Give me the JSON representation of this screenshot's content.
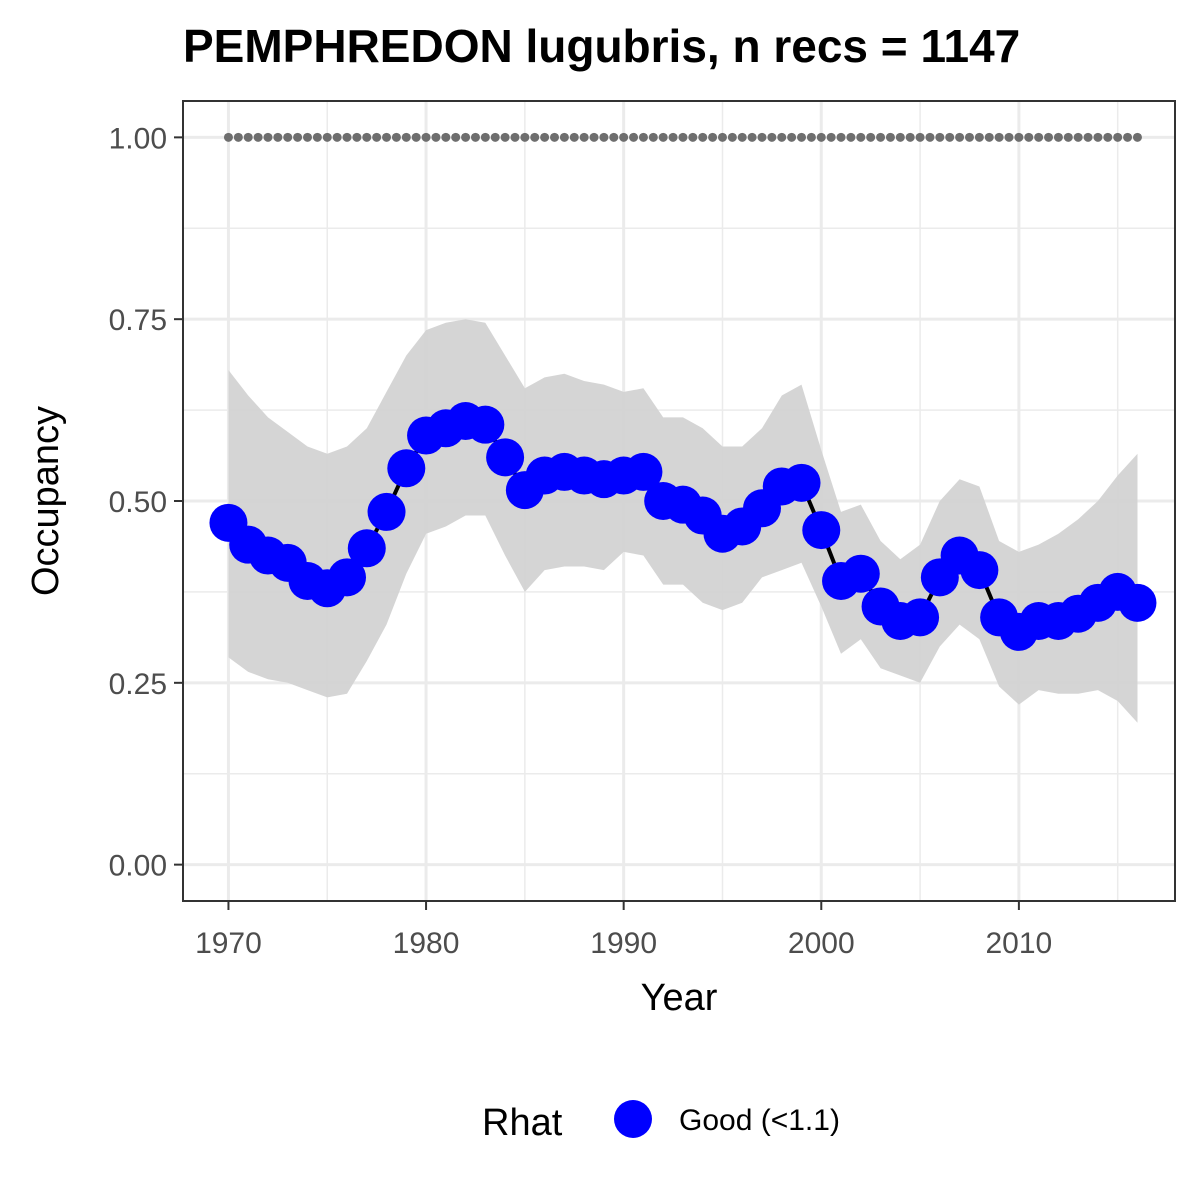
{
  "chart_data": {
    "type": "line",
    "title": "PEMPHREDON lugubris, n recs = 1147",
    "xlabel": "Year",
    "ylabel": "Occupancy",
    "xlim": [
      1967.7,
      2017.9
    ],
    "ylim": [
      -0.05,
      1.05
    ],
    "x_ticks": [
      1970,
      1980,
      1990,
      2000,
      2010
    ],
    "x_tick_labels": [
      "1970",
      "1980",
      "1990",
      "2000",
      "2010"
    ],
    "y_ticks": [
      0,
      0.25,
      0.5,
      0.75,
      1.0
    ],
    "y_tick_labels": [
      "0.00",
      "0.25",
      "0.50",
      "0.75",
      "1.00"
    ],
    "grid": true,
    "legend": {
      "title": "Rhat",
      "position": "bottom",
      "entries": [
        {
          "label": "Good (<1.1)",
          "color": "#0000ff"
        }
      ]
    },
    "colors": {
      "points": "#0000ff",
      "line": "#000000",
      "ribbon": "#d3d3d3",
      "reference_dots": "#6e6e6e",
      "grid": "#ebebeb",
      "panel_border": "#333333"
    },
    "x": [
      1970,
      1971,
      1972,
      1973,
      1974,
      1975,
      1976,
      1977,
      1978,
      1979,
      1980,
      1981,
      1982,
      1983,
      1984,
      1985,
      1986,
      1987,
      1988,
      1989,
      1990,
      1991,
      1992,
      1993,
      1994,
      1995,
      1996,
      1997,
      1998,
      1999,
      2000,
      2001,
      2002,
      2003,
      2004,
      2005,
      2006,
      2007,
      2008,
      2009,
      2010,
      2011,
      2012,
      2013,
      2014,
      2015,
      2016
    ],
    "occupancy": [
      0.47,
      0.44,
      0.425,
      0.415,
      0.39,
      0.38,
      0.395,
      0.435,
      0.485,
      0.545,
      0.59,
      0.6,
      0.61,
      0.605,
      0.56,
      0.515,
      0.535,
      0.54,
      0.535,
      0.53,
      0.535,
      0.54,
      0.5,
      0.495,
      0.48,
      0.455,
      0.465,
      0.49,
      0.52,
      0.525,
      0.46,
      0.39,
      0.4,
      0.355,
      0.335,
      0.34,
      0.395,
      0.425,
      0.405,
      0.34,
      0.32,
      0.335,
      0.335,
      0.345,
      0.36,
      0.375,
      0.36
    ],
    "lower_95": [
      0.285,
      0.265,
      0.255,
      0.25,
      0.24,
      0.23,
      0.235,
      0.28,
      0.33,
      0.4,
      0.455,
      0.465,
      0.48,
      0.48,
      0.425,
      0.375,
      0.405,
      0.41,
      0.41,
      0.405,
      0.43,
      0.425,
      0.385,
      0.385,
      0.36,
      0.35,
      0.36,
      0.395,
      0.405,
      0.415,
      0.355,
      0.29,
      0.31,
      0.27,
      0.26,
      0.25,
      0.3,
      0.33,
      0.31,
      0.245,
      0.22,
      0.24,
      0.235,
      0.235,
      0.24,
      0.225,
      0.195
    ],
    "upper_95": [
      0.68,
      0.645,
      0.615,
      0.595,
      0.575,
      0.565,
      0.575,
      0.6,
      0.65,
      0.7,
      0.735,
      0.745,
      0.75,
      0.745,
      0.7,
      0.655,
      0.67,
      0.675,
      0.665,
      0.66,
      0.65,
      0.655,
      0.615,
      0.615,
      0.6,
      0.575,
      0.575,
      0.6,
      0.645,
      0.66,
      0.57,
      0.485,
      0.495,
      0.445,
      0.42,
      0.44,
      0.5,
      0.53,
      0.52,
      0.445,
      0.43,
      0.44,
      0.455,
      0.475,
      0.5,
      0.535,
      0.565
    ],
    "reference_line": {
      "y": 1.0,
      "style": "dotted"
    }
  }
}
